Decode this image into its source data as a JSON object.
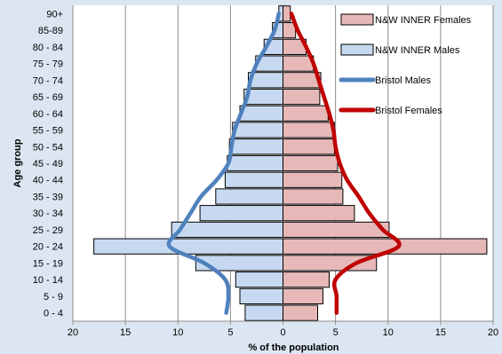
{
  "chart_data": {
    "type": "bar",
    "orientation": "horizontal-pyramid",
    "title": "",
    "xlabel": "% of the population",
    "ylabel": "Age group",
    "xlim": [
      -20,
      20
    ],
    "x_tick_values": [
      -20,
      -15,
      -10,
      -5,
      0,
      5,
      10,
      15,
      20
    ],
    "x_tick_labels": [
      "20",
      "15",
      "10",
      "5",
      "0",
      "5",
      "10",
      "15",
      "20"
    ],
    "grid": "vertical",
    "legend_position": "top-right",
    "categories": [
      "0 - 4",
      "5 - 9",
      "10 - 14",
      "15 - 19",
      "20 - 24",
      "25 - 29",
      "30 - 34",
      "35 - 39",
      "40 - 44",
      "45 - 49",
      "50 - 54",
      "55 - 59",
      "60 - 64",
      "65 - 69",
      "70 - 74",
      "75 - 79",
      "80 - 84",
      "85-89",
      "90+"
    ],
    "series": [
      {
        "name": "N&W INNER Females",
        "kind": "bar",
        "side": "right",
        "color": "#e6b9b8",
        "values": [
          3.3,
          3.8,
          4.4,
          8.9,
          19.4,
          10.1,
          6.8,
          5.7,
          5.6,
          5.2,
          4.9,
          4.9,
          4.3,
          3.5,
          3.6,
          2.9,
          2.2,
          1.2,
          0.7
        ]
      },
      {
        "name": "N&W INNER Males",
        "kind": "bar",
        "side": "left",
        "color": "#c6d9f1",
        "values": [
          3.6,
          4.1,
          4.5,
          8.3,
          18.0,
          10.6,
          7.9,
          6.4,
          5.5,
          5.3,
          5.1,
          4.8,
          4.1,
          3.7,
          3.3,
          2.6,
          1.8,
          1.0,
          0.4
        ]
      },
      {
        "name": "Bristol Males",
        "kind": "line",
        "side": "left",
        "color": "#4f81bd",
        "values": [
          5.4,
          5.2,
          5.5,
          7.5,
          10.8,
          9.8,
          8.8,
          7.8,
          6.3,
          5.2,
          4.9,
          4.6,
          4.0,
          3.4,
          3.1,
          2.5,
          1.6,
          0.8,
          0.4
        ]
      },
      {
        "name": "Bristol Females",
        "kind": "line",
        "side": "right",
        "color": "#c00000",
        "values": [
          5.1,
          5.1,
          5.0,
          7.0,
          11.0,
          9.5,
          8.2,
          7.2,
          6.1,
          5.4,
          5.0,
          4.8,
          4.4,
          3.9,
          3.4,
          2.9,
          2.2,
          1.4,
          0.8
        ]
      }
    ]
  }
}
